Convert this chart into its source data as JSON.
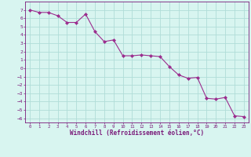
{
  "x": [
    0,
    1,
    2,
    3,
    4,
    5,
    6,
    7,
    8,
    9,
    10,
    11,
    12,
    13,
    14,
    15,
    16,
    17,
    18,
    19,
    20,
    21,
    22,
    23
  ],
  "y": [
    7.0,
    6.7,
    6.7,
    6.3,
    5.5,
    5.5,
    6.5,
    4.4,
    3.2,
    3.4,
    1.5,
    1.5,
    1.6,
    1.5,
    1.4,
    0.2,
    -0.8,
    -1.2,
    -1.1,
    -3.6,
    -3.7,
    -3.5,
    -5.7,
    -5.8
  ],
  "line_color": "#9b2d8e",
  "marker_color": "#9b2d8e",
  "bg_color": "#d8f5f0",
  "grid_color": "#b0ddd8",
  "xlabel": "Windchill (Refroidissement éolien,°C)",
  "xlabel_color": "#7a1a7a",
  "tick_color": "#7a1a7a",
  "ylim": [
    -6.5,
    8.0
  ],
  "xlim": [
    -0.5,
    23.5
  ],
  "yticks": [
    7,
    6,
    5,
    4,
    3,
    2,
    1,
    0,
    -1,
    -2,
    -3,
    -4,
    -5,
    -6
  ],
  "xticks": [
    0,
    1,
    2,
    3,
    4,
    5,
    6,
    7,
    8,
    9,
    10,
    11,
    12,
    13,
    14,
    15,
    16,
    17,
    18,
    19,
    20,
    21,
    22,
    23
  ]
}
